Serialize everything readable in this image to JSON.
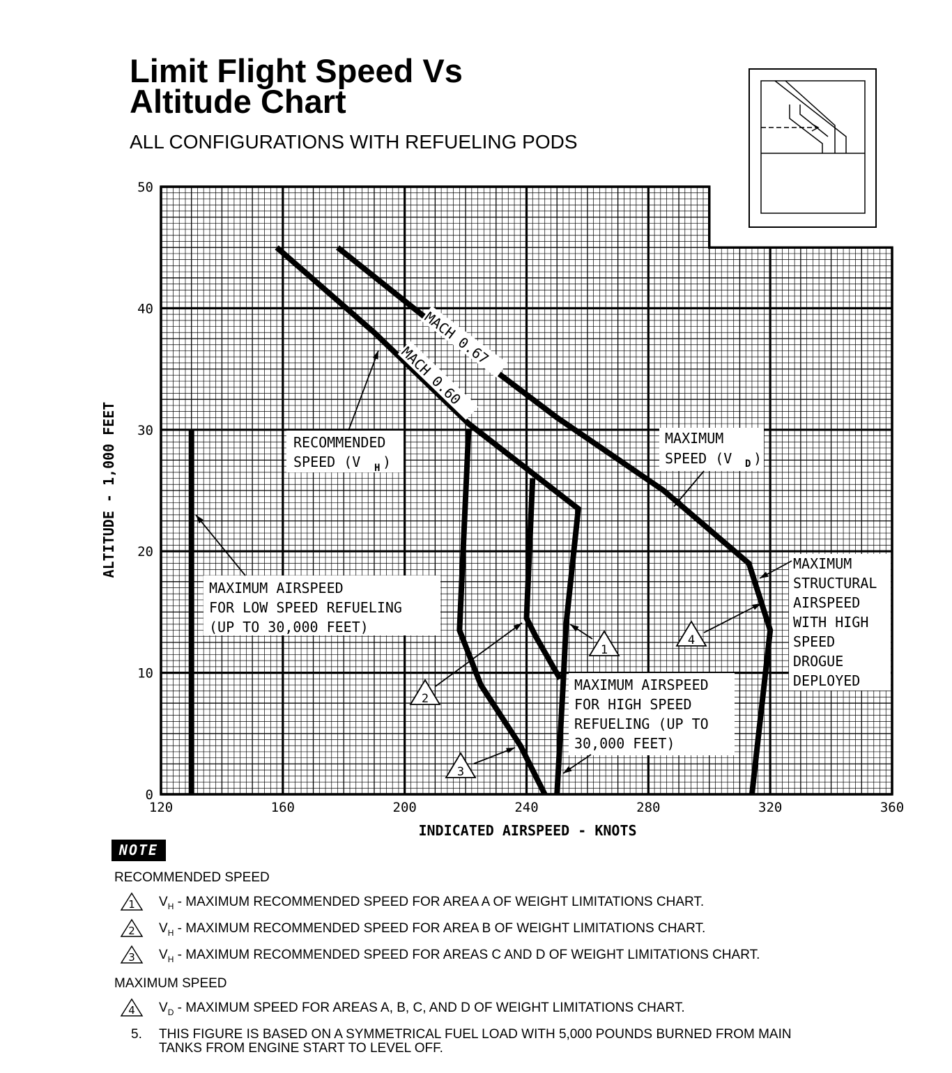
{
  "header": {
    "title_line1": "Limit Flight Speed Vs",
    "title_line2": "Altitude Chart",
    "subtitle": "ALL CONFIGURATIONS WITH REFUELING PODS"
  },
  "chart_data": {
    "type": "line",
    "xlabel": "INDICATED AIRSPEED - KNOTS",
    "ylabel": "ALTITUDE - 1,000 FEET",
    "xlim": [
      120,
      360
    ],
    "ylim": [
      0,
      50
    ],
    "x_ticks": [
      120,
      160,
      200,
      240,
      280,
      320,
      360
    ],
    "y_ticks": [
      0,
      10,
      20,
      30,
      40,
      50
    ],
    "grid": true,
    "series": [
      {
        "name": "MACH 0.67",
        "points": [
          [
            178,
            45
          ],
          [
            213,
            38
          ],
          [
            250,
            31
          ],
          [
            285,
            25
          ],
          [
            313,
            19
          ],
          [
            320,
            13.5
          ],
          [
            314,
            0
          ]
        ]
      },
      {
        "name": "MACH 0.60",
        "points": [
          [
            158,
            45
          ],
          [
            190,
            38
          ],
          [
            221,
            30.5
          ],
          [
            257,
            23.5
          ],
          [
            253,
            14
          ],
          [
            252,
            9
          ],
          [
            250,
            0
          ]
        ]
      },
      {
        "name": "",
        "points": [
          [
            242,
            26
          ],
          [
            240,
            14.5
          ],
          [
            243,
            13
          ],
          [
            251,
            9.5
          ]
        ]
      },
      {
        "name": "",
        "points": [
          [
            221,
            30
          ],
          [
            218,
            13.5
          ],
          [
            225,
            9
          ],
          [
            238,
            4
          ],
          [
            246,
            0
          ]
        ]
      },
      {
        "name": "",
        "points": [
          [
            130,
            30
          ],
          [
            130,
            0
          ]
        ]
      }
    ],
    "chart_area_top_cutoff": [
      [
        120,
        50
      ],
      [
        300,
        50
      ],
      [
        300,
        45
      ],
      [
        360,
        45
      ]
    ],
    "labels": {
      "recommended_speed": [
        "RECOMMENDED",
        "SPEED (V",
        "H",
        ")"
      ],
      "maximum_speed": [
        "MAXIMUM",
        "SPEED (V",
        "D",
        ")"
      ],
      "max_airspeed_low": [
        "MAXIMUM AIRSPEED",
        "FOR LOW SPEED REFUELING",
        "(UP TO 30,000 FEET)"
      ],
      "max_airspeed_high": [
        "MAXIMUM AIRSPEED",
        "FOR HIGH SPEED",
        "REFUELING (UP TO",
        "30,000 FEET)"
      ],
      "max_structural": [
        "MAXIMUM",
        "STRUCTURAL",
        "AIRSPEED",
        "WITH HIGH",
        "SPEED",
        "DROGUE",
        "DEPLOYED"
      ],
      "markers": [
        "1",
        "2",
        "3",
        "4"
      ]
    }
  },
  "notes": {
    "badge": "NOTE",
    "heading_recommended": "RECOMMENDED SPEED",
    "items_recommended": [
      {
        "marker": "1",
        "symbol": "V",
        "sub": "H",
        "text": " - MAXIMUM RECOMMENDED SPEED FOR AREA A OF WEIGHT LIMITATIONS CHART."
      },
      {
        "marker": "2",
        "symbol": "V",
        "sub": "H",
        "text": " - MAXIMUM RECOMMENDED SPEED FOR AREA B OF WEIGHT LIMITATIONS CHART."
      },
      {
        "marker": "3",
        "symbol": "V",
        "sub": "H",
        "text": " - MAXIMUM RECOMMENDED SPEED FOR AREAS C AND D OF WEIGHT LIMITATIONS CHART."
      }
    ],
    "heading_maximum": "MAXIMUM SPEED",
    "item_maximum": {
      "marker": "4",
      "symbol": "V",
      "sub": "D",
      "text": " - MAXIMUM SPEED FOR AREAS A, B, C, AND D OF WEIGHT LIMITATIONS CHART."
    },
    "item5_num": "5.",
    "item5_line1": "THIS FIGURE IS BASED ON A SYMMETRICAL FUEL LOAD WITH 5,000 POUNDS BURNED FROM MAIN",
    "item5_line2": "TANKS FROM ENGINE START TO LEVEL OFF."
  }
}
